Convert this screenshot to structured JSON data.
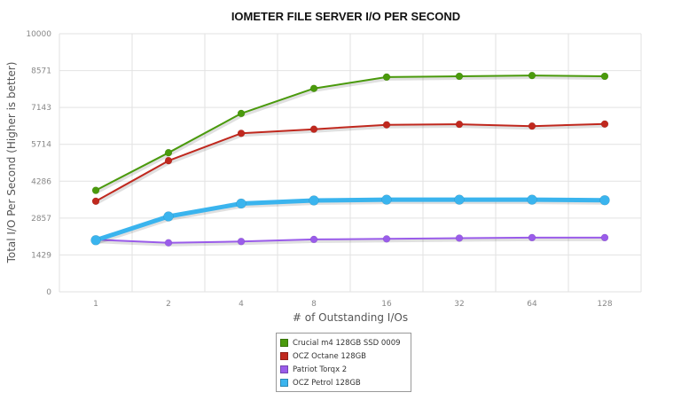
{
  "chart_data": {
    "type": "line",
    "title": "IOMETER FILE SERVER I/O PER SECOND",
    "xlabel": "# of Outstanding I/Os",
    "ylabel": "Total I/O Per Second (Higher is better)",
    "categories": [
      "1",
      "2",
      "4",
      "8",
      "16",
      "32",
      "64",
      "128"
    ],
    "yticks": [
      "0",
      "1429",
      "2857",
      "4286",
      "5714",
      "7143",
      "8571",
      "10000"
    ],
    "ylim": [
      0,
      10000
    ],
    "grid": true,
    "legend_position": "bottom-center",
    "series": [
      {
        "name": "Crucial m4 128GB SSD 0009",
        "color": "#4a9a0c",
        "values": [
          3930,
          5390,
          6910,
          7880,
          8320,
          8350,
          8380,
          8350
        ]
      },
      {
        "name": "OCZ Octane 128GB",
        "color": "#c0281e",
        "values": [
          3510,
          5080,
          6140,
          6300,
          6470,
          6490,
          6420,
          6500
        ]
      },
      {
        "name": "Patriot Torqx 2",
        "color": "#9a5cea",
        "values": [
          2020,
          1900,
          1950,
          2030,
          2050,
          2080,
          2100,
          2100
        ]
      },
      {
        "name": "OCZ Petrol 128GB",
        "color": "#3ab4ee",
        "values": [
          2000,
          2920,
          3420,
          3540,
          3570,
          3570,
          3570,
          3550
        ]
      }
    ]
  }
}
